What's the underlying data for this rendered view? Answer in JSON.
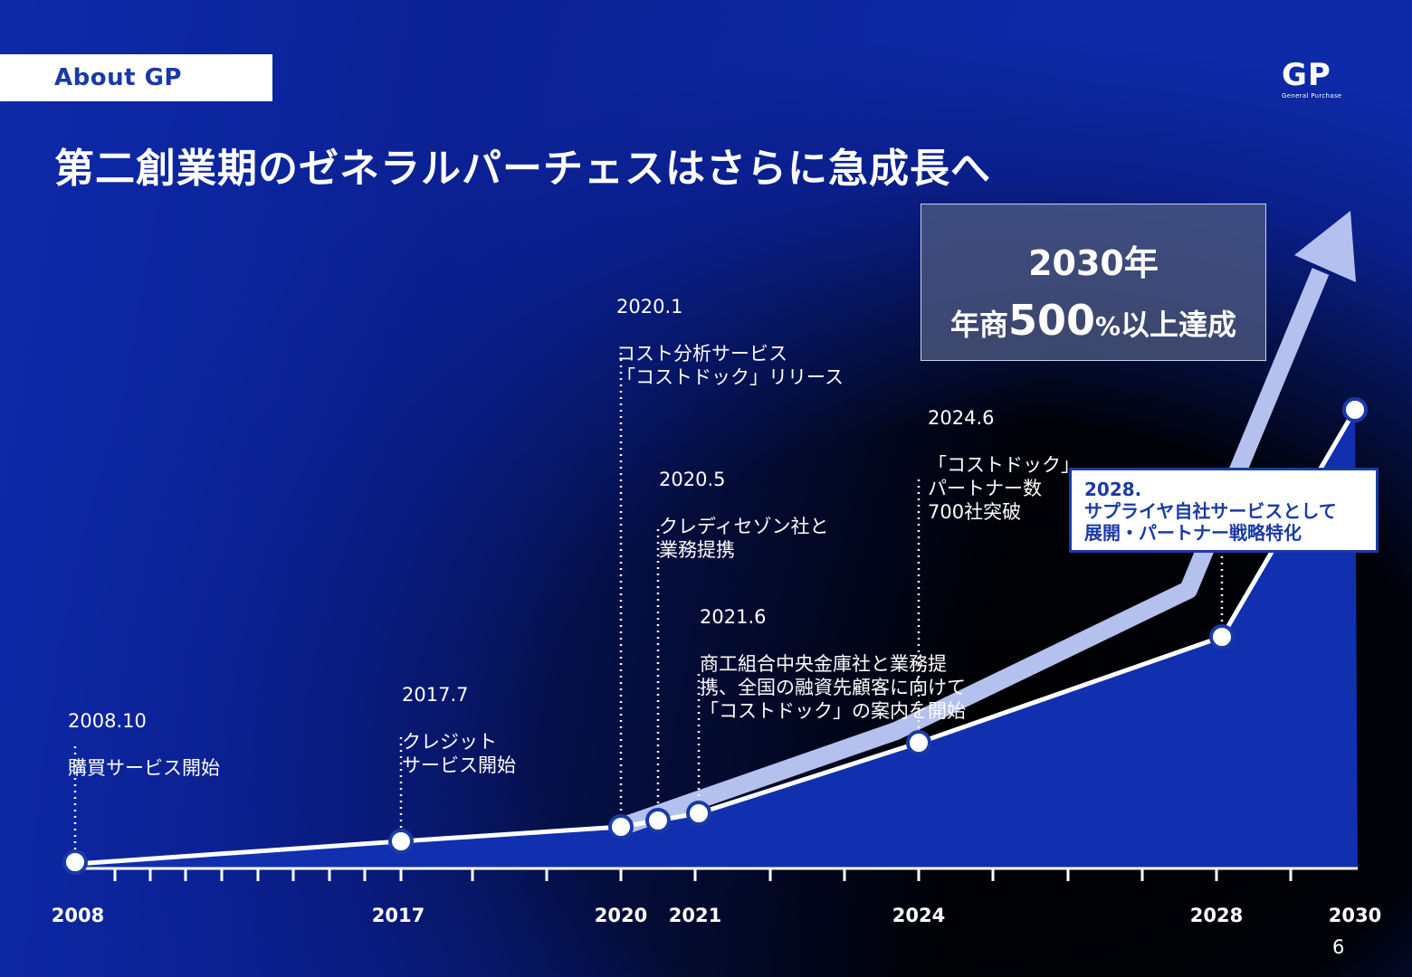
{
  "tag_label": "About GP",
  "logo": {
    "mark": "GP",
    "subtitle": "General Purchase"
  },
  "title": "第二創業期のゼネラルパーチェスはさらに急成長へ",
  "goal": {
    "year": "2030年",
    "prefix": "年商",
    "value": "500",
    "suffix": "%",
    "rest": "以上達成"
  },
  "milestones": [
    {
      "id": "m2008",
      "date": "2008.10",
      "text": "購買サービス開始"
    },
    {
      "id": "m2017",
      "date": "2017.7",
      "text": "クレジット\nサービス開始"
    },
    {
      "id": "m2020a",
      "date": "2020.1",
      "text": "コスト分析サービス\n「コストドック」リリース"
    },
    {
      "id": "m2020b",
      "date": "2020.5",
      "text": "クレディセゾン社と\n業務提携"
    },
    {
      "id": "m2021",
      "date": "2021.6",
      "text": "商工組合中央金庫社と業務提\n携、全国の融資先顧客に向けて\n「コストドック」の案内を開始"
    },
    {
      "id": "m2024",
      "date": "2024.6",
      "text": "「コストドック」\nパートナー数\n700社突破"
    }
  ],
  "callout": {
    "date": "2028.",
    "line1": "サプライヤ自社サービスとして",
    "line2": "展開・パートナー戦略特化"
  },
  "x_axis_labels": [
    "2008",
    "2017",
    "2020",
    "2021",
    "2024",
    "2028",
    "2030"
  ],
  "page_number": "6",
  "colors": {
    "accent": "#1a3aa6",
    "area": "#1030b0",
    "arrow": "#b4c0ee"
  }
}
